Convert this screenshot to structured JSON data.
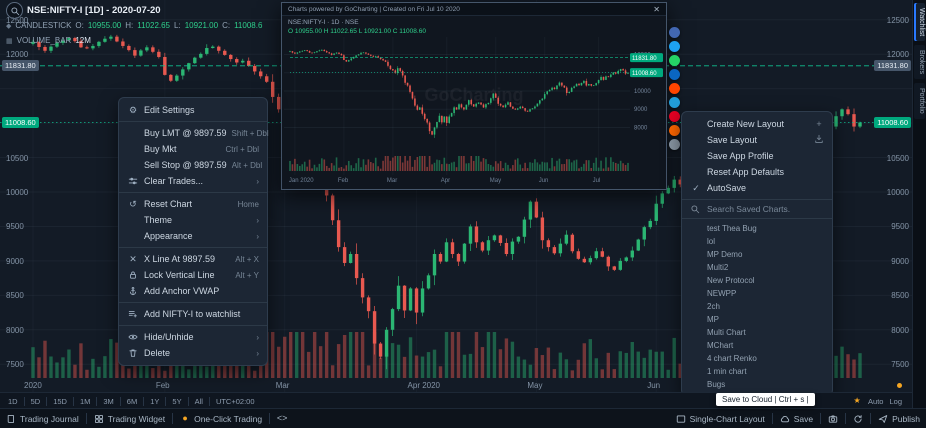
{
  "icons": {
    "gear": "⚙",
    "reset": "↺",
    "xline": "✕",
    "chevron": "›",
    "plus": "+",
    "check": "✓",
    "star": "★",
    "dot": "●",
    "code": "<>",
    "close": "✕",
    "diamond": "◆",
    "square": "▦"
  },
  "colors": {
    "up": "#2bb673",
    "down": "#e85950",
    "accent": "#2979ff",
    "badge_green": "#00a97e",
    "badge_gray": "#46566a",
    "one_click_dot": "#f5a623"
  },
  "header": {
    "symbol": "NSE:NIFTY-I [1D] - 2020-07-20",
    "study": "CANDLESTICK",
    "o_label": "O:",
    "o": "10955.00",
    "h_label": "H:",
    "h": "11022.65",
    "l_label": "L:",
    "l": "10921.00",
    "c_label": "C:",
    "c": "11008.6",
    "volume_study": "VOLUME_BAR",
    "volume_value": "12M"
  },
  "price_axis": {
    "visible_labels": [
      12500,
      12000,
      10500,
      10000,
      9500,
      9000,
      8500,
      8000,
      7500
    ]
  },
  "chart_data": {
    "type": "candlestick",
    "symbol": "NSE:NIFTY-I",
    "interval": "1D",
    "ylim": [
      7300,
      12700
    ],
    "up_color": "#2bb673",
    "down_color": "#e85950",
    "closes": [
      12180,
      12105,
      12050,
      12110,
      12165,
      12200,
      12235,
      12190,
      12100,
      12085,
      12120,
      12180,
      12225,
      12255,
      12185,
      12120,
      12060,
      11980,
      12055,
      12100,
      12035,
      11960,
      11700,
      11615,
      11690,
      11780,
      11870,
      11950,
      12005,
      12090,
      12110,
      12050,
      11990,
      11930,
      11880,
      11905,
      11830,
      11750,
      11680,
      11600,
      11380,
      11200,
      11130,
      10980,
      11250,
      11100,
      10850,
      10450,
      10300,
      9950,
      9590,
      9200,
      8970,
      9100,
      8750,
      8470,
      8270,
      7800,
      7610,
      8000,
      8300,
      8640,
      8280,
      8600,
      8250,
      8600,
      8790,
      9100,
      8990,
      9270,
      9100,
      8990,
      9250,
      9500,
      9270,
      9150,
      9300,
      9370,
      9260,
      9100,
      9280,
      9350,
      9600,
      9860,
      9630,
      9300,
      9200,
      9110,
      9250,
      9380,
      9140,
      9030,
      8980,
      9040,
      9140,
      9060,
      8920,
      8870,
      9000,
      9050,
      9150,
      9310,
      9490,
      9580,
      9830,
      9980,
      10060,
      10180,
      10110,
      10300,
      10460,
      10300,
      10190,
      9890,
      9950,
      10170,
      10250,
      10390,
      10310,
      10440,
      10550,
      10300,
      10380,
      10290,
      10310,
      10430,
      10600,
      10770,
      10610,
      10800,
      10770,
      10900,
      11020,
      10950,
      11100,
      11200,
      11130,
      10950,
      11008.6
    ],
    "month_labels": [
      {
        "label": "2020",
        "i": 0
      },
      {
        "label": "Feb",
        "i": 22
      },
      {
        "label": "Mar",
        "i": 42
      },
      {
        "label": "Apr 2020",
        "i": 64
      },
      {
        "label": "May",
        "i": 84
      },
      {
        "label": "Jun",
        "i": 104
      }
    ],
    "price_gridlines": [
      7500,
      8000,
      8500,
      9000,
      9500,
      10000,
      10500,
      11000,
      11500,
      12000,
      12500
    ],
    "price_lines": [
      {
        "price": 11831.8,
        "label": "11831.80",
        "style": "dashed",
        "badge": "gray"
      },
      {
        "price": 11008.6,
        "label": "11008.60",
        "style": "dotted",
        "badge": "green"
      }
    ]
  },
  "context_menu": {
    "items": [
      {
        "icon": "gear",
        "label": "Edit Settings"
      },
      {
        "sep": true
      },
      {
        "label": "Buy LMT @ 9897.59",
        "shortcut": "Shift + Dbl"
      },
      {
        "label": "Buy Mkt",
        "shortcut": "Ctrl + Dbl"
      },
      {
        "label": "Sell Stop @ 9897.59",
        "shortcut": "Alt + Dbl"
      },
      {
        "icon": "sliders",
        "label": "Clear Trades...",
        "chevron": true
      },
      {
        "sep": true
      },
      {
        "icon": "reset",
        "label": "Reset Chart",
        "shortcut": "Home"
      },
      {
        "label": "Theme",
        "chevron": true
      },
      {
        "label": "Appearance",
        "chevron": true
      },
      {
        "sep": true
      },
      {
        "icon": "xline",
        "label": "X Line At 9897.59",
        "shortcut": "Alt + X"
      },
      {
        "icon": "lock",
        "label": "Lock Vertical Line",
        "shortcut": "Alt + Y"
      },
      {
        "icon": "anchor",
        "label": "Add Anchor VWAP"
      },
      {
        "sep": true
      },
      {
        "icon": "playlist",
        "label": "Add NIFTY-I to watchlist"
      },
      {
        "sep": true
      },
      {
        "icon": "eye",
        "label": "Hide/Unhide",
        "chevron": true
      },
      {
        "icon": "trash",
        "label": "Delete",
        "chevron": true
      }
    ]
  },
  "layout_menu": {
    "items": [
      {
        "label": "Create New Layout",
        "right_icon": "plus"
      },
      {
        "label": "Save Layout",
        "right_icon": "save"
      },
      {
        "label": "Save App Profile"
      },
      {
        "label": "Reset App Defaults"
      },
      {
        "label": "AutoSave",
        "left_icon": "check"
      }
    ],
    "search_placeholder": "Search Saved Charts.",
    "saved_charts": [
      "test Thea Bug",
      "lol",
      "MP Demo",
      "Multi2",
      "New Protocol",
      "NEWPP",
      "2ch",
      "MP",
      "Multi Chart",
      "MChart",
      "4 chart Renko",
      "1 min chart",
      "Bugs"
    ]
  },
  "inset": {
    "title": "Charts powered by GoCharting  |  Created on Fri Jul 10 2020",
    "symbol_line": "NSE:NIFTY-I · 1D · NSE",
    "ohlc_line": "O 10955.00   H 11022.65   L 10921.00   C 11008.60",
    "watermark": "GoCharting",
    "axis_labels": [
      12000,
      11000,
      10000,
      9000,
      8000
    ],
    "month_labels": [
      {
        "label": "Jan 2020",
        "i": 2
      },
      {
        "label": "Feb",
        "i": 22
      },
      {
        "label": "Mar",
        "i": 42
      },
      {
        "label": "Apr",
        "i": 64
      },
      {
        "label": "May",
        "i": 84
      },
      {
        "label": "Jun",
        "i": 104
      },
      {
        "label": "Jul",
        "i": 126
      }
    ]
  },
  "share_icons": [
    {
      "name": "facebook",
      "color": "#4267B2"
    },
    {
      "name": "twitter",
      "color": "#1DA1F2"
    },
    {
      "name": "whatsapp",
      "color": "#25D366"
    },
    {
      "name": "linkedin",
      "color": "#0A66C2"
    },
    {
      "name": "reddit",
      "color": "#FF4500"
    },
    {
      "name": "telegram",
      "color": "#229ED9"
    },
    {
      "name": "pinterest",
      "color": "#E60023"
    },
    {
      "name": "hackernews",
      "color": "#FF6600"
    },
    {
      "name": "email",
      "color": "#8A97A4"
    }
  ],
  "timeframe_bar": {
    "items": [
      "1D",
      "5D",
      "15D",
      "1M",
      "3M",
      "6M",
      "1Y",
      "5Y",
      "All"
    ],
    "timezone": "UTC+02:00",
    "right": {
      "auto": "Auto",
      "log": "Log"
    }
  },
  "bottom_bar": {
    "left": [
      {
        "icon": "journal",
        "label": "Trading Journal"
      },
      {
        "icon": "widget",
        "label": "Trading Widget"
      },
      {
        "icon": "dot",
        "label": "One-Click Trading"
      },
      {
        "icon": "code",
        "label": ""
      }
    ],
    "right": [
      {
        "icon": "layout",
        "label": "Single-Chart Layout"
      },
      {
        "icon": "cloud",
        "label": "Save"
      },
      {
        "icon": "camera",
        "label": ""
      },
      {
        "icon": "refresh",
        "label": ""
      },
      {
        "icon": "publish",
        "label": "Publish"
      }
    ]
  },
  "tooltip": {
    "text": "Save to Cloud | Ctrl + s |"
  },
  "side_tabs": [
    "Watchlist",
    "Brokers",
    "Portfolio"
  ]
}
